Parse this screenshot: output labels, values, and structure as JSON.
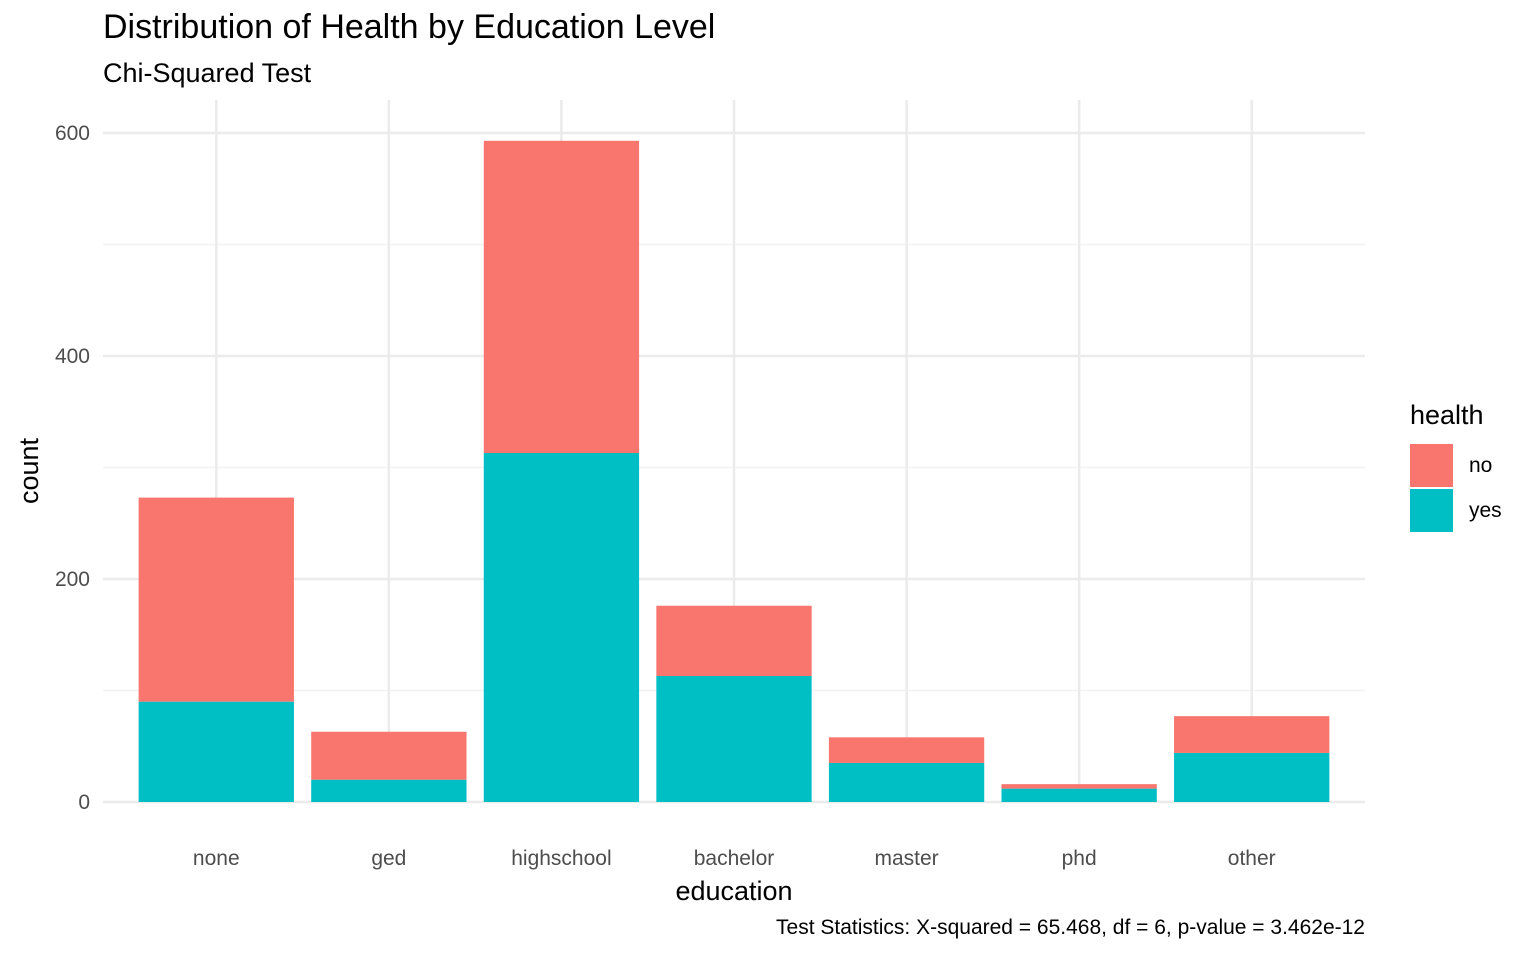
{
  "chart_data": {
    "type": "bar",
    "stacked": true,
    "title": "Distribution of Health by Education Level",
    "subtitle": "Chi-Squared Test",
    "caption": "Test Statistics: X-squared = 65.468, df = 6, p-value = 3.462e-12",
    "xlabel": "education",
    "ylabel": "count",
    "categories": [
      "none",
      "ged",
      "highschool",
      "bachelor",
      "master",
      "phd",
      "other"
    ],
    "series": [
      {
        "name": "yes",
        "color": "#00BFC4",
        "values": [
          90,
          20,
          313,
          113,
          35,
          12,
          44
        ]
      },
      {
        "name": "no",
        "color": "#F8766D",
        "values": [
          183,
          43,
          280,
          63,
          23,
          4,
          33
        ]
      }
    ],
    "ylim": [
      0,
      600
    ],
    "yticks": [
      0,
      200,
      400,
      600
    ],
    "grid": true,
    "legend": {
      "title": "health",
      "position": "right",
      "entries": [
        "no",
        "yes"
      ]
    }
  }
}
